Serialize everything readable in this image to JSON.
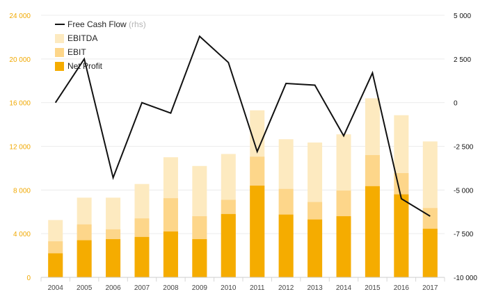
{
  "chart_data": {
    "type": "bar",
    "categories": [
      "2004",
      "2005",
      "2006",
      "2007",
      "2008",
      "2009",
      "2010",
      "2011",
      "2012",
      "2013",
      "2014",
      "2015",
      "2016",
      "2017"
    ],
    "series": [
      {
        "name": "EBITDA",
        "axis": "left",
        "color": "#fdeac0",
        "values": [
          5250,
          7300,
          7300,
          8550,
          11000,
          10200,
          11300,
          15300,
          12650,
          12350,
          13100,
          16400,
          14850,
          12450
        ]
      },
      {
        "name": "EBIT",
        "axis": "left",
        "color": "#fdd68a",
        "values": [
          3300,
          4850,
          4400,
          5400,
          7250,
          5600,
          7100,
          11050,
          8100,
          6900,
          7950,
          11200,
          9550,
          6350
        ]
      },
      {
        "name": "Net Profit",
        "axis": "left",
        "color": "#f5ac00",
        "values": [
          2200,
          3400,
          3500,
          3700,
          4200,
          3500,
          5800,
          8400,
          5750,
          5300,
          5600,
          8350,
          7600,
          4450
        ]
      },
      {
        "name": "Free Cash Flow",
        "suffix": "(rhs)",
        "axis": "right",
        "kind": "line",
        "color": "#111111",
        "values": [
          0,
          2500,
          -4300,
          0,
          -600,
          3800,
          2300,
          -2800,
          1100,
          1000,
          -1900,
          1700,
          -5500,
          -6500
        ]
      }
    ],
    "y_left": {
      "ticks": [
        0,
        4000,
        8000,
        12000,
        16000,
        20000,
        24000
      ],
      "tick_labels": [
        "0",
        "4 000",
        "8 000",
        "12 000",
        "16 000",
        "20 000",
        "24 000"
      ],
      "range": [
        0,
        24000
      ],
      "color": "#f0a800"
    },
    "y_right": {
      "ticks": [
        -10000,
        -7500,
        -5000,
        -2500,
        0,
        2500,
        5000
      ],
      "tick_labels": [
        "-10 000",
        "-7 500",
        "-5 000",
        "-2 500",
        "0",
        "2 500",
        "5 000"
      ],
      "range": [
        -10000,
        5000
      ],
      "color": "#111111"
    },
    "grid": true,
    "legend_position": "top-left"
  }
}
